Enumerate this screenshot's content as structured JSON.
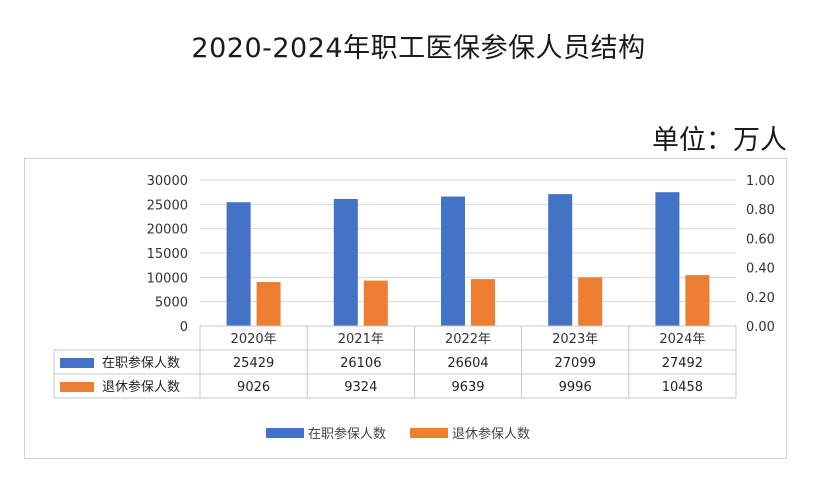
{
  "title": "2020-2024年职工医保参保人员结构",
  "unit": "单位：万人",
  "colors": {
    "series1": "#4472C4",
    "series2": "#ED7D31"
  },
  "chart_data": {
    "type": "bar",
    "categories": [
      "2020年",
      "2021年",
      "2022年",
      "2023年",
      "2024年"
    ],
    "series": [
      {
        "name": "在职参保人数",
        "values": [
          25429,
          26106,
          26604,
          27099,
          27492
        ]
      },
      {
        "name": "退休参保人数",
        "values": [
          9026,
          9324,
          9639,
          9996,
          10458
        ]
      }
    ],
    "ylim": [
      0,
      30000
    ],
    "yticks": [
      "0",
      "5000",
      "10000",
      "15000",
      "20000",
      "25000",
      "30000"
    ],
    "y2lim": [
      0,
      1
    ],
    "y2ticks": [
      "0.00",
      "0.20",
      "0.40",
      "0.60",
      "0.80",
      "1.00"
    ],
    "grid": true,
    "legend": "bottom",
    "data_table": true
  }
}
